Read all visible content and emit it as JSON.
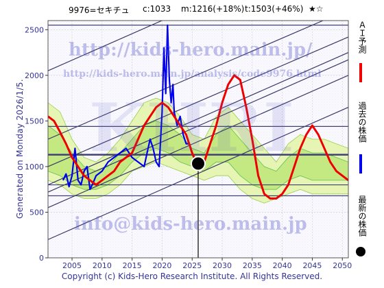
{
  "header": {
    "title": "9976=セキチュ",
    "current": "c:1033",
    "mid_target": "m:1216(+18%)",
    "top_target": "t:1503(+46%)",
    "rating": "★☆"
  },
  "side_text": "Generated on Monday 2026/1/5.",
  "legend": {
    "forecast": "ＡＩ予測",
    "past": "過去の株価",
    "latest": "最新の株価",
    "forecast_color": "#ee0000",
    "past_color": "#0000ee",
    "latest_color": "#000000"
  },
  "watermarks": {
    "url1": "http://kids-hero.main.jp/",
    "url2": "http://kids-hero.main.jp/analysis/code9976.html",
    "email": "info@kids-hero.main.jp",
    "logo": "KHRI"
  },
  "copyright": "Copyright (c) Kids-Hero Research Institute. All Rights Reserved.",
  "chart_data": {
    "type": "line",
    "xlim": [
      2001,
      2051
    ],
    "ylim": [
      0,
      2600
    ],
    "x_ticks": [
      2005,
      2010,
      2015,
      2020,
      2025,
      2030,
      2035,
      2040,
      2045,
      2050
    ],
    "y_ticks": [
      0,
      500,
      1000,
      1500,
      2000,
      2500
    ],
    "grid": true,
    "latest_point": {
      "x": 2026.0,
      "y": 1033
    },
    "horizontal_levels": [
      2550,
      1440,
      1130,
      800,
      680
    ],
    "trend_lines": [
      {
        "x": [
          2001,
          2051
        ],
        "y": [
          2050,
          3500
        ]
      },
      {
        "x": [
          2001,
          2051
        ],
        "y": [
          1300,
          2720
        ]
      },
      {
        "x": [
          2001,
          2051
        ],
        "y": [
          1000,
          2420
        ]
      },
      {
        "x": [
          2001,
          2051
        ],
        "y": [
          800,
          2250
        ]
      },
      {
        "x": [
          2001,
          2051
        ],
        "y": [
          720,
          2170
        ]
      },
      {
        "x": [
          2001,
          2051
        ],
        "y": [
          550,
          2000
        ]
      },
      {
        "x": [
          2001,
          2051
        ],
        "y": [
          200,
          1650
        ]
      }
    ],
    "band_outer": {
      "x": [
        2001,
        2003,
        2005,
        2007,
        2009,
        2011,
        2013,
        2015,
        2017,
        2019,
        2021,
        2023,
        2025,
        2027,
        2029,
        2031,
        2033,
        2035,
        2037,
        2039,
        2041,
        2043,
        2045,
        2047,
        2049,
        2051
      ],
      "upper": [
        1700,
        1600,
        1300,
        1100,
        1050,
        1150,
        1300,
        1500,
        1700,
        1750,
        1700,
        1550,
        1350,
        1300,
        1550,
        1650,
        1500,
        1350,
        1200,
        1050,
        1250,
        1350,
        1300,
        1300,
        1250,
        1200
      ],
      "lower": [
        850,
        800,
        700,
        650,
        650,
        700,
        800,
        950,
        1000,
        1050,
        1000,
        950,
        900,
        850,
        900,
        900,
        750,
        650,
        600,
        650,
        700,
        750,
        700,
        700,
        700,
        700
      ]
    },
    "band_inner": {
      "x": [
        2001,
        2003,
        2005,
        2007,
        2009,
        2011,
        2013,
        2015,
        2017,
        2019,
        2021,
        2023,
        2025,
        2027,
        2029,
        2031,
        2033,
        2035,
        2037,
        2039,
        2041,
        2043,
        2045,
        2047,
        2049,
        2051
      ],
      "upper": [
        1450,
        1350,
        1150,
        1000,
        950,
        1000,
        1150,
        1300,
        1450,
        1500,
        1450,
        1350,
        1200,
        1150,
        1350,
        1450,
        1300,
        1150,
        1000,
        950,
        1100,
        1200,
        1150,
        1150,
        1100,
        1050
      ],
      "lower": [
        950,
        900,
        800,
        750,
        750,
        800,
        900,
        1050,
        1150,
        1200,
        1150,
        1050,
        1000,
        950,
        1050,
        1050,
        900,
        800,
        750,
        750,
        850,
        900,
        850,
        850,
        850,
        850
      ]
    },
    "series": [
      {
        "name": "過去の株価",
        "color": "#0000ee",
        "x": [
          2003.5,
          2004.0,
          2004.5,
          2005.0,
          2005.5,
          2006.0,
          2006.5,
          2007.0,
          2007.5,
          2008.0,
          2008.5,
          2009.0,
          2010.0,
          2011.0,
          2012.0,
          2013.0,
          2014.0,
          2015.0,
          2016.0,
          2017.0,
          2017.5,
          2018.0,
          2018.5,
          2019.0,
          2019.5,
          2020.0,
          2020.3,
          2020.6,
          2020.9,
          2021.2,
          2021.5,
          2021.8,
          2022.0,
          2022.5,
          2023.0,
          2023.5,
          2024.0,
          2024.5,
          2025.0,
          2025.5
        ],
        "y": [
          850,
          920,
          780,
          900,
          1200,
          850,
          800,
          950,
          1000,
          750,
          820,
          900,
          950,
          1050,
          1100,
          1150,
          1200,
          1100,
          1050,
          1000,
          1150,
          1300,
          1200,
          1050,
          1000,
          1600,
          2300,
          1800,
          2550,
          1950,
          1700,
          1900,
          1600,
          1450,
          1550,
          1350,
          1250,
          1250,
          1150,
          1050
        ]
      },
      {
        "name": "ＡＩ予測",
        "color": "#ee0000",
        "x": [
          2001,
          2002,
          2003,
          2004,
          2005,
          2006,
          2007,
          2008,
          2009,
          2010,
          2011,
          2012,
          2013,
          2014,
          2015,
          2016,
          2017,
          2018,
          2019,
          2020,
          2021,
          2022,
          2023,
          2024,
          2025,
          2026,
          2027,
          2028,
          2029,
          2030,
          2031,
          2032,
          2033,
          2034,
          2035,
          2036,
          2037,
          2038,
          2039,
          2040,
          2041,
          2042,
          2043,
          2044,
          2045,
          2046,
          2047,
          2048,
          2049,
          2050,
          2051
        ],
        "y": [
          1550,
          1500,
          1380,
          1250,
          1100,
          1000,
          900,
          850,
          800,
          850,
          900,
          950,
          1050,
          1100,
          1150,
          1300,
          1450,
          1550,
          1650,
          1700,
          1650,
          1550,
          1450,
          1350,
          1150,
          1000,
          1050,
          1250,
          1450,
          1700,
          1900,
          2000,
          1950,
          1650,
          1300,
          900,
          700,
          650,
          650,
          700,
          800,
          1000,
          1200,
          1350,
          1450,
          1350,
          1200,
          1050,
          950,
          900,
          850
        ]
      }
    ]
  }
}
